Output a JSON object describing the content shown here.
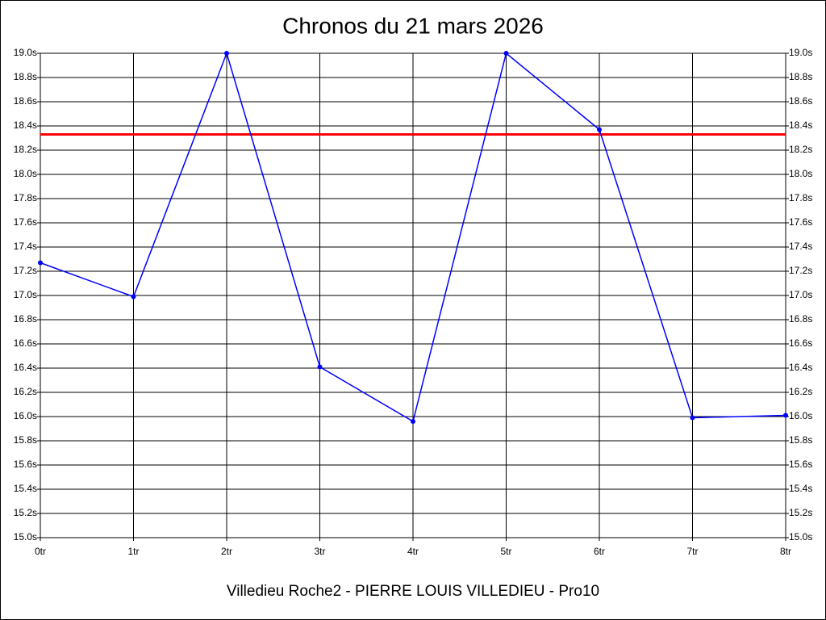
{
  "chart_data": {
    "type": "line",
    "title": "Chronos du 21 mars 2026",
    "xlabel": "Villedieu Roche2 - PIERRE LOUIS VILLEDIEU - Pro10",
    "categories": [
      "0tr",
      "1tr",
      "2tr",
      "3tr",
      "4tr",
      "5tr",
      "6tr",
      "7tr",
      "8tr"
    ],
    "series": [
      {
        "color": "#0000ff",
        "values": [
          17.27,
          16.99,
          19.0,
          16.41,
          15.96,
          19.0,
          18.37,
          15.99,
          16.01
        ]
      }
    ],
    "reference_line": {
      "value": 18.33,
      "color": "#ff0000"
    },
    "ylim": [
      15.0,
      19.0
    ],
    "yticks": [
      {
        "value": 15.0,
        "label": "15.0s"
      },
      {
        "value": 15.2,
        "label": "15.2s"
      },
      {
        "value": 15.4,
        "label": "15.4s"
      },
      {
        "value": 15.6,
        "label": "15.6s"
      },
      {
        "value": 15.8,
        "label": "15.8s"
      },
      {
        "value": 16.0,
        "label": "16.0s"
      },
      {
        "value": 16.2,
        "label": "16.2s"
      },
      {
        "value": 16.4,
        "label": "16.4s"
      },
      {
        "value": 16.6,
        "label": "16.6s"
      },
      {
        "value": 16.8,
        "label": "16.8s"
      },
      {
        "value": 17.0,
        "label": "17.0s"
      },
      {
        "value": 17.2,
        "label": "17.2s"
      },
      {
        "value": 17.4,
        "label": "17.4s"
      },
      {
        "value": 17.6,
        "label": "17.6s"
      },
      {
        "value": 17.8,
        "label": "17.8s"
      },
      {
        "value": 18.0,
        "label": "18.0s"
      },
      {
        "value": 18.2,
        "label": "18.2s"
      },
      {
        "value": 18.4,
        "label": "18.4s"
      },
      {
        "value": 18.6,
        "label": "18.6s"
      },
      {
        "value": 18.8,
        "label": "18.8s"
      },
      {
        "value": 19.0,
        "label": "19.0s"
      }
    ],
    "grid": true
  }
}
